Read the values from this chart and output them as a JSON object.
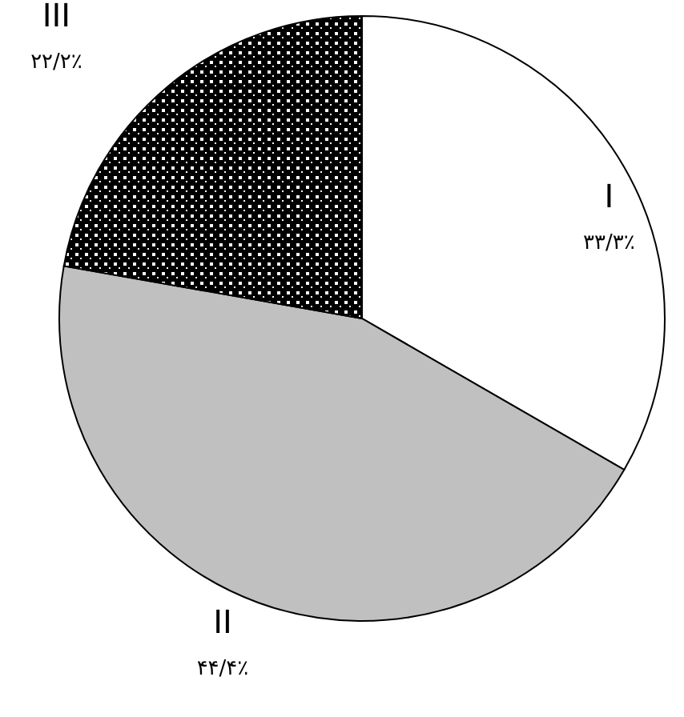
{
  "chart_data": {
    "type": "pie",
    "categories": [
      "I",
      "II",
      "III"
    ],
    "values": [
      33.3,
      44.4,
      22.2
    ],
    "value_labels": [
      "۳۳/۳٪",
      "۴۴/۴٪",
      "۲۲/۲٪"
    ],
    "colors": [
      "#ffffff",
      "#c0c0c0",
      "#000000"
    ],
    "legend": false
  }
}
